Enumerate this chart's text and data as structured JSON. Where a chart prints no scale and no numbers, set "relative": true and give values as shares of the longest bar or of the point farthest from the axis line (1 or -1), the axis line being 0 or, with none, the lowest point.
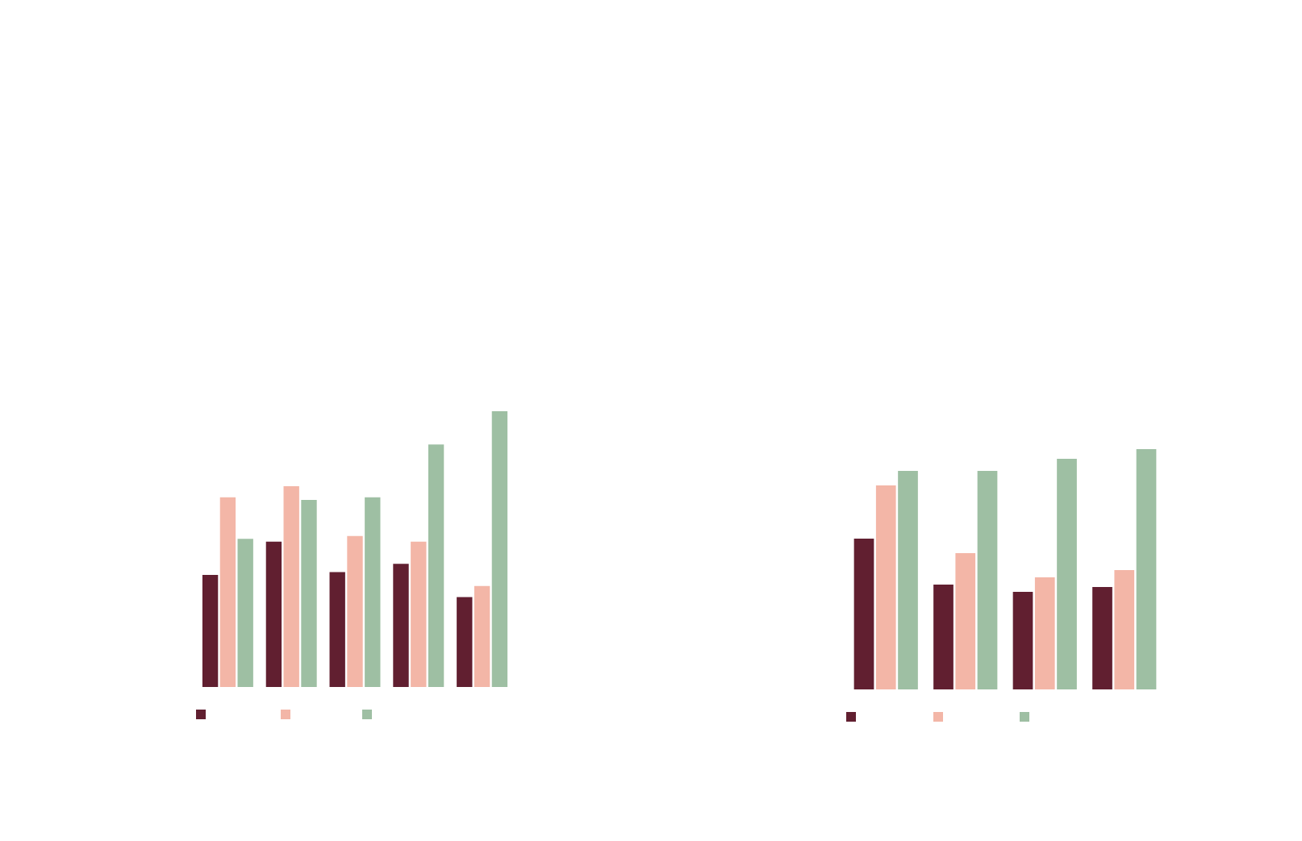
{
  "chart_data": [
    {
      "type": "bar",
      "relative": true,
      "categories": [
        null,
        null,
        null,
        null,
        null
      ],
      "series": [
        {
          "color": "#611f30",
          "values": [
            0.41,
            0.53,
            0.42,
            0.45,
            0.33
          ]
        },
        {
          "color": "#f3b6a7",
          "values": [
            0.69,
            0.73,
            0.55,
            0.53,
            0.37
          ]
        },
        {
          "color": "#9ebfa3",
          "values": [
            0.54,
            0.68,
            0.69,
            0.88,
            1
          ]
        }
      ]
    },
    {
      "type": "bar",
      "relative": true,
      "categories": [
        null,
        null,
        null,
        null
      ],
      "series": [
        {
          "color": "#611f30",
          "values": [
            0.63,
            0.44,
            0.41,
            0.43
          ]
        },
        {
          "color": "#f3b6a7",
          "values": [
            0.85,
            0.57,
            0.47,
            0.5
          ]
        },
        {
          "color": "#9ebfa3",
          "values": [
            0.91,
            0.91,
            0.96,
            1
          ]
        }
      ]
    }
  ]
}
